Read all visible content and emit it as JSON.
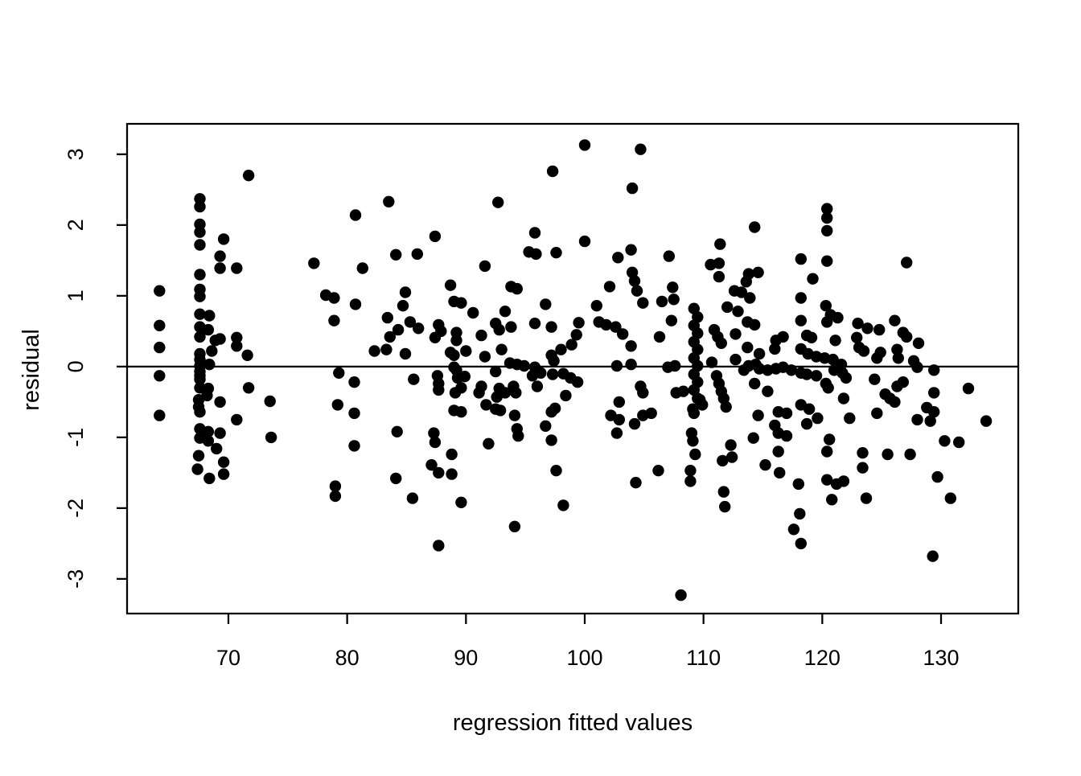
{
  "chart_data": {
    "type": "scatter",
    "title": "",
    "xlabel": "regression fitted values",
    "ylabel": "residual",
    "xlim": [
      61.47,
      136.5
    ],
    "ylim": [
      -3.49,
      3.43
    ],
    "xticks": [
      70,
      80,
      90,
      100,
      110,
      120,
      130
    ],
    "yticks": [
      -3,
      -2,
      -1,
      0,
      1,
      2,
      3
    ],
    "grid": false,
    "legend": "none",
    "hline_y": 0,
    "style": {
      "point_color": "#000000",
      "axis_color": "#000000",
      "background": "#ffffff",
      "point_radius_px": 7.2
    },
    "points": [
      [
        64.2,
        1.07
      ],
      [
        64.2,
        0.58
      ],
      [
        64.2,
        0.27
      ],
      [
        64.2,
        -0.13
      ],
      [
        64.2,
        -0.69
      ],
      [
        71.7,
        2.7
      ],
      [
        67.6,
        2.37
      ],
      [
        67.6,
        2.26
      ],
      [
        67.6,
        2.01
      ],
      [
        67.6,
        1.9
      ],
      [
        67.6,
        1.72
      ],
      [
        67.6,
        1.3
      ],
      [
        69.6,
        1.8
      ],
      [
        69.3,
        1.56
      ],
      [
        69.3,
        1.39
      ],
      [
        70.7,
        1.39
      ],
      [
        77.2,
        1.46
      ],
      [
        67.6,
        1.09
      ],
      [
        67.6,
        0.99
      ],
      [
        67.6,
        0.74
      ],
      [
        68.4,
        0.72
      ],
      [
        67.6,
        0.56
      ],
      [
        68.3,
        0.52
      ],
      [
        67.6,
        0.42
      ],
      [
        68.9,
        0.37
      ],
      [
        69.3,
        0.39
      ],
      [
        70.7,
        0.41
      ],
      [
        70.7,
        0.29
      ],
      [
        68.6,
        0.22
      ],
      [
        71.6,
        0.16
      ],
      [
        67.6,
        0.18
      ],
      [
        67.6,
        0.1
      ],
      [
        67.6,
        0.01
      ],
      [
        67.6,
        -0.07
      ],
      [
        68.4,
        0.03
      ],
      [
        67.6,
        -0.13
      ],
      [
        67.6,
        -0.18
      ],
      [
        67.6,
        -0.3
      ],
      [
        68.3,
        -0.31
      ],
      [
        71.7,
        -0.3
      ],
      [
        68.2,
        -0.41
      ],
      [
        67.5,
        -0.47
      ],
      [
        67.5,
        -0.57
      ],
      [
        69.3,
        -0.5
      ],
      [
        67.6,
        -0.64
      ],
      [
        70.7,
        -0.75
      ],
      [
        67.6,
        -0.88
      ],
      [
        68.3,
        -0.92
      ],
      [
        69.3,
        -0.94
      ],
      [
        67.6,
        -1.01
      ],
      [
        68.3,
        -1.05
      ],
      [
        69.0,
        -1.16
      ],
      [
        67.5,
        -1.26
      ],
      [
        69.6,
        -1.35
      ],
      [
        67.4,
        -1.45
      ],
      [
        68.4,
        -1.58
      ],
      [
        69.6,
        -1.52
      ],
      [
        78.2,
        1.01
      ],
      [
        78.9,
        0.97
      ],
      [
        78.9,
        0.65
      ],
      [
        79.3,
        -0.09
      ],
      [
        79.2,
        -0.54
      ],
      [
        73.5,
        -0.49
      ],
      [
        73.6,
        -1.0
      ],
      [
        79.0,
        -1.69
      ],
      [
        79.0,
        -1.83
      ],
      [
        83.5,
        2.33
      ],
      [
        80.7,
        2.14
      ],
      [
        92.7,
        2.32
      ],
      [
        97.3,
        2.76
      ],
      [
        87.4,
        1.84
      ],
      [
        95.8,
        1.89
      ],
      [
        84.1,
        1.58
      ],
      [
        85.9,
        1.59
      ],
      [
        81.3,
        1.39
      ],
      [
        95.3,
        1.62
      ],
      [
        95.9,
        1.59
      ],
      [
        97.6,
        1.61
      ],
      [
        91.6,
        1.42
      ],
      [
        88.7,
        1.15
      ],
      [
        93.8,
        1.13
      ],
      [
        94.3,
        1.1
      ],
      [
        80.7,
        0.88
      ],
      [
        84.9,
        1.05
      ],
      [
        84.7,
        0.86
      ],
      [
        89.0,
        0.92
      ],
      [
        89.6,
        0.9
      ],
      [
        93.3,
        0.78
      ],
      [
        90.6,
        0.76
      ],
      [
        96.7,
        0.88
      ],
      [
        83.4,
        0.69
      ],
      [
        85.3,
        0.63
      ],
      [
        86.0,
        0.54
      ],
      [
        84.3,
        0.52
      ],
      [
        83.6,
        0.42
      ],
      [
        87.7,
        0.59
      ],
      [
        87.9,
        0.5
      ],
      [
        87.4,
        0.41
      ],
      [
        89.2,
        0.48
      ],
      [
        89.2,
        0.37
      ],
      [
        91.3,
        0.44
      ],
      [
        92.5,
        0.61
      ],
      [
        92.8,
        0.52
      ],
      [
        93.8,
        0.56
      ],
      [
        95.8,
        0.61
      ],
      [
        97.2,
        0.56
      ],
      [
        82.3,
        0.22
      ],
      [
        83.3,
        0.24
      ],
      [
        84.9,
        0.18
      ],
      [
        88.7,
        0.2
      ],
      [
        89.0,
        0.16
      ],
      [
        90.0,
        0.22
      ],
      [
        91.6,
        0.14
      ],
      [
        93.0,
        0.24
      ],
      [
        97.2,
        0.16
      ],
      [
        97.4,
        0.08
      ],
      [
        95.8,
        -0.01
      ],
      [
        94.3,
        0.03
      ],
      [
        94.9,
        0.01
      ],
      [
        93.7,
        0.05
      ],
      [
        89.0,
        -0.01
      ],
      [
        92.5,
        -0.07
      ],
      [
        95.6,
        -0.13
      ],
      [
        96.3,
        -0.09
      ],
      [
        85.6,
        -0.18
      ],
      [
        87.6,
        -0.13
      ],
      [
        87.7,
        -0.24
      ],
      [
        87.7,
        -0.33
      ],
      [
        89.2,
        -0.05
      ],
      [
        89.3,
        -0.16
      ],
      [
        89.9,
        -0.14
      ],
      [
        89.6,
        -0.3
      ],
      [
        89.1,
        -0.37
      ],
      [
        91.3,
        -0.28
      ],
      [
        91.1,
        -0.37
      ],
      [
        92.8,
        -0.31
      ],
      [
        93.3,
        -0.37
      ],
      [
        92.6,
        -0.43
      ],
      [
        94.0,
        -0.28
      ],
      [
        94.2,
        -0.37
      ],
      [
        96.0,
        -0.28
      ],
      [
        91.7,
        -0.54
      ],
      [
        92.5,
        -0.6
      ],
      [
        92.9,
        -0.62
      ],
      [
        89.0,
        -0.62
      ],
      [
        89.6,
        -0.64
      ],
      [
        94.1,
        -0.69
      ],
      [
        97.2,
        -0.64
      ],
      [
        94.3,
        -0.88
      ],
      [
        94.4,
        -0.98
      ],
      [
        96.7,
        -0.84
      ],
      [
        80.6,
        -0.22
      ],
      [
        80.6,
        -0.66
      ],
      [
        84.2,
        -0.92
      ],
      [
        87.3,
        -0.94
      ],
      [
        87.4,
        -1.07
      ],
      [
        91.9,
        -1.09
      ],
      [
        97.2,
        -1.04
      ],
      [
        80.6,
        -1.12
      ],
      [
        88.8,
        -1.24
      ],
      [
        87.1,
        -1.39
      ],
      [
        87.7,
        -1.5
      ],
      [
        88.8,
        -1.52
      ],
      [
        84.1,
        -1.58
      ],
      [
        85.5,
        -1.86
      ],
      [
        89.6,
        -1.92
      ],
      [
        94.1,
        -2.26
      ],
      [
        87.7,
        -2.53
      ],
      [
        97.6,
        -1.47
      ],
      [
        98.2,
        -1.96
      ],
      [
        98.9,
        0.31
      ],
      [
        99.3,
        0.45
      ],
      [
        99.5,
        0.62
      ],
      [
        98.0,
        0.24
      ],
      [
        97.3,
        -0.11
      ],
      [
        98.2,
        -0.1
      ],
      [
        98.8,
        -0.16
      ],
      [
        99.4,
        -0.22
      ],
      [
        98.4,
        -0.41
      ],
      [
        97.5,
        -0.59
      ],
      [
        100.0,
        3.13
      ],
      [
        104.7,
        3.07
      ],
      [
        104.0,
        2.52
      ],
      [
        100.0,
        1.77
      ],
      [
        114.3,
        1.97
      ],
      [
        103.9,
        1.65
      ],
      [
        102.8,
        1.54
      ],
      [
        107.1,
        1.56
      ],
      [
        111.4,
        1.73
      ],
      [
        110.6,
        1.44
      ],
      [
        111.3,
        1.46
      ],
      [
        111.3,
        1.27
      ],
      [
        104.0,
        1.33
      ],
      [
        104.2,
        1.21
      ],
      [
        113.8,
        1.31
      ],
      [
        114.6,
        1.33
      ],
      [
        113.6,
        1.2
      ],
      [
        102.1,
        1.13
      ],
      [
        107.4,
        1.12
      ],
      [
        104.4,
        1.07
      ],
      [
        104.9,
        0.9
      ],
      [
        106.5,
        0.92
      ],
      [
        107.5,
        0.95
      ],
      [
        101.0,
        0.86
      ],
      [
        112.6,
        1.07
      ],
      [
        113.2,
        1.05
      ],
      [
        113.9,
        0.97
      ],
      [
        112.0,
        0.84
      ],
      [
        112.9,
        0.78
      ],
      [
        109.2,
        0.82
      ],
      [
        109.5,
        0.7
      ],
      [
        109.2,
        0.58
      ],
      [
        109.5,
        0.47
      ],
      [
        109.2,
        0.35
      ],
      [
        109.5,
        0.24
      ],
      [
        109.2,
        0.12
      ],
      [
        109.5,
        0.01
      ],
      [
        109.2,
        -0.11
      ],
      [
        109.5,
        -0.22
      ],
      [
        109.2,
        -0.33
      ],
      [
        109.5,
        -0.45
      ],
      [
        101.2,
        0.63
      ],
      [
        101.8,
        0.59
      ],
      [
        102.6,
        0.56
      ],
      [
        103.2,
        0.46
      ],
      [
        103.9,
        0.29
      ],
      [
        106.3,
        0.42
      ],
      [
        107.3,
        0.65
      ],
      [
        110.9,
        0.52
      ],
      [
        111.2,
        0.42
      ],
      [
        111.5,
        0.33
      ],
      [
        112.7,
        0.46
      ],
      [
        113.7,
        0.63
      ],
      [
        114.3,
        0.59
      ],
      [
        114.7,
        0.18
      ],
      [
        113.7,
        0.27
      ],
      [
        116.1,
        0.37
      ],
      [
        116.7,
        0.42
      ],
      [
        116.0,
        0.25
      ],
      [
        102.7,
        0.01
      ],
      [
        103.9,
        0.03
      ],
      [
        107.0,
        -0.01
      ],
      [
        107.6,
        0.01
      ],
      [
        110.7,
        0.06
      ],
      [
        112.7,
        0.1
      ],
      [
        113.4,
        -0.05
      ],
      [
        113.8,
        0.01
      ],
      [
        114.4,
        0.03
      ],
      [
        114.7,
        -0.03
      ],
      [
        115.4,
        -0.05
      ],
      [
        116.1,
        -0.03
      ],
      [
        116.7,
        -0.01
      ],
      [
        117.4,
        -0.05
      ],
      [
        104.7,
        -0.28
      ],
      [
        104.9,
        -0.37
      ],
      [
        107.7,
        -0.37
      ],
      [
        108.3,
        -0.35
      ],
      [
        109.7,
        -0.47
      ],
      [
        109.9,
        -0.54
      ],
      [
        109.1,
        -0.6
      ],
      [
        109.2,
        -0.66
      ],
      [
        111.1,
        -0.13
      ],
      [
        111.3,
        -0.24
      ],
      [
        111.5,
        -0.35
      ],
      [
        111.7,
        -0.45
      ],
      [
        111.9,
        -0.57
      ],
      [
        114.3,
        -0.24
      ],
      [
        115.4,
        -0.35
      ],
      [
        116.3,
        -0.64
      ],
      [
        117.0,
        -0.66
      ],
      [
        114.6,
        -0.69
      ],
      [
        102.9,
        -0.5
      ],
      [
        102.2,
        -0.69
      ],
      [
        102.9,
        -0.75
      ],
      [
        104.9,
        -0.69
      ],
      [
        105.6,
        -0.66
      ],
      [
        104.2,
        -0.81
      ],
      [
        102.7,
        -0.94
      ],
      [
        109.0,
        -0.94
      ],
      [
        109.1,
        -1.05
      ],
      [
        112.3,
        -1.11
      ],
      [
        114.2,
        -1.01
      ],
      [
        116.0,
        -0.83
      ],
      [
        116.3,
        -0.94
      ],
      [
        117.0,
        -0.98
      ],
      [
        104.3,
        -1.64
      ],
      [
        106.2,
        -1.47
      ],
      [
        108.9,
        -1.47
      ],
      [
        108.9,
        -1.62
      ],
      [
        109.3,
        -1.24
      ],
      [
        111.7,
        -1.77
      ],
      [
        111.8,
        -1.98
      ],
      [
        111.6,
        -1.33
      ],
      [
        112.4,
        -1.28
      ],
      [
        115.2,
        -1.39
      ],
      [
        116.4,
        -1.5
      ],
      [
        116.3,
        -1.2
      ],
      [
        117.6,
        -2.3
      ],
      [
        108.1,
        -3.23
      ],
      [
        120.4,
        2.23
      ],
      [
        120.4,
        2.1
      ],
      [
        120.4,
        1.92
      ],
      [
        118.2,
        1.52
      ],
      [
        120.4,
        1.49
      ],
      [
        127.1,
        1.47
      ],
      [
        119.2,
        1.24
      ],
      [
        118.2,
        0.97
      ],
      [
        120.3,
        0.86
      ],
      [
        118.2,
        0.65
      ],
      [
        118.7,
        0.44
      ],
      [
        119.1,
        0.41
      ],
      [
        120.7,
        0.73
      ],
      [
        121.3,
        0.69
      ],
      [
        120.4,
        0.63
      ],
      [
        123.0,
        0.61
      ],
      [
        123.8,
        0.54
      ],
      [
        124.8,
        0.52
      ],
      [
        126.1,
        0.65
      ],
      [
        126.8,
        0.48
      ],
      [
        127.1,
        0.42
      ],
      [
        128.1,
        0.33
      ],
      [
        121.1,
        0.37
      ],
      [
        122.9,
        0.41
      ],
      [
        123.1,
        0.27
      ],
      [
        123.5,
        0.22
      ],
      [
        118.2,
        0.25
      ],
      [
        118.8,
        0.18
      ],
      [
        119.5,
        0.14
      ],
      [
        120.2,
        0.12
      ],
      [
        120.9,
        0.1
      ],
      [
        121.6,
        0.03
      ],
      [
        124.6,
        0.12
      ],
      [
        124.9,
        0.2
      ],
      [
        126.3,
        0.24
      ],
      [
        126.4,
        0.12
      ],
      [
        127.7,
        0.08
      ],
      [
        128.0,
        -0.01
      ],
      [
        129.4,
        -0.05
      ],
      [
        121.0,
        -0.05
      ],
      [
        121.7,
        -0.09
      ],
      [
        122.0,
        -0.16
      ],
      [
        120.3,
        -0.24
      ],
      [
        120.5,
        -0.3
      ],
      [
        119.5,
        -0.13
      ],
      [
        118.7,
        -0.11
      ],
      [
        118.2,
        -0.09
      ],
      [
        124.4,
        -0.18
      ],
      [
        125.3,
        -0.39
      ],
      [
        125.7,
        -0.45
      ],
      [
        126.1,
        -0.5
      ],
      [
        126.3,
        -0.28
      ],
      [
        126.8,
        -0.22
      ],
      [
        121.8,
        -0.45
      ],
      [
        129.4,
        -0.37
      ],
      [
        132.3,
        -0.31
      ],
      [
        128.8,
        -0.58
      ],
      [
        129.4,
        -0.64
      ],
      [
        128.0,
        -0.75
      ],
      [
        129.1,
        -0.77
      ],
      [
        124.6,
        -0.66
      ],
      [
        122.3,
        -0.73
      ],
      [
        118.2,
        -0.54
      ],
      [
        118.9,
        -0.6
      ],
      [
        119.6,
        -0.73
      ],
      [
        118.7,
        -0.81
      ],
      [
        133.8,
        -0.77
      ],
      [
        130.3,
        -1.05
      ],
      [
        131.5,
        -1.07
      ],
      [
        120.6,
        -1.03
      ],
      [
        120.4,
        -1.2
      ],
      [
        123.4,
        -1.22
      ],
      [
        123.4,
        -1.43
      ],
      [
        125.5,
        -1.24
      ],
      [
        127.4,
        -1.24
      ],
      [
        120.4,
        -1.6
      ],
      [
        121.2,
        -1.66
      ],
      [
        121.8,
        -1.62
      ],
      [
        120.8,
        -1.88
      ],
      [
        123.7,
        -1.86
      ],
      [
        129.7,
        -1.56
      ],
      [
        130.8,
        -1.86
      ],
      [
        118.0,
        -1.66
      ],
      [
        118.1,
        -2.08
      ],
      [
        118.2,
        -2.5
      ],
      [
        129.3,
        -2.68
      ]
    ]
  }
}
